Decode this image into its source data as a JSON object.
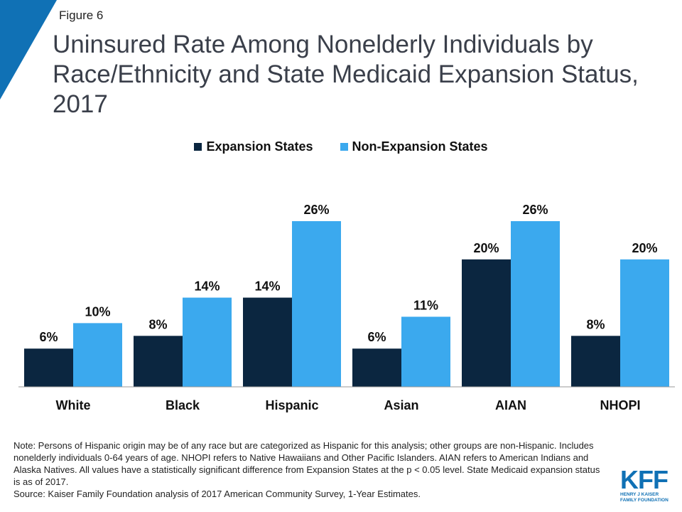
{
  "figure_label": "Figure 6",
  "title": "Uninsured Rate Among Nonelderly Individuals by Race/Ethnicity and State Medicaid Expansion Status, 2017",
  "colors": {
    "expansion": "#0b2640",
    "non_expansion": "#3ba9ee",
    "corner": "#1071b5",
    "axis": "#999999"
  },
  "chart_data": {
    "type": "bar",
    "categories": [
      "White",
      "Black",
      "Hispanic",
      "Asian",
      "AIAN",
      "NHOPI"
    ],
    "series": [
      {
        "name": "Expansion States",
        "values": [
          6,
          8,
          14,
          6,
          20,
          8
        ],
        "labels": [
          "6%",
          "8%",
          "14%",
          "6%",
          "20%",
          "8%"
        ]
      },
      {
        "name": "Non-Expansion States",
        "values": [
          10,
          14,
          26,
          11,
          26,
          20
        ],
        "labels": [
          "10%",
          "14%",
          "26%",
          "11%",
          "26%",
          "20%"
        ]
      }
    ],
    "ylim": [
      0,
      26
    ],
    "grid": false,
    "legend_position": "top"
  },
  "note": "Note: Persons of Hispanic origin may be of any race but are categorized as Hispanic for this analysis; other groups are non-Hispanic. Includes nonelderly individuals 0-64 years of age. NHOPI refers to Native Hawaiians and Other Pacific Islanders. AIAN refers to American Indians and Alaska Natives. All values have a statistically significant difference from Expansion States at the p < 0.05 level. State Medicaid expansion status is as of 2017.",
  "source": "Source: Kaiser Family Foundation analysis of 2017 American Community Survey, 1-Year Estimates.",
  "logo": {
    "mark": "KFF",
    "line1": "HENRY J KAISER",
    "line2": "FAMILY FOUNDATION"
  }
}
